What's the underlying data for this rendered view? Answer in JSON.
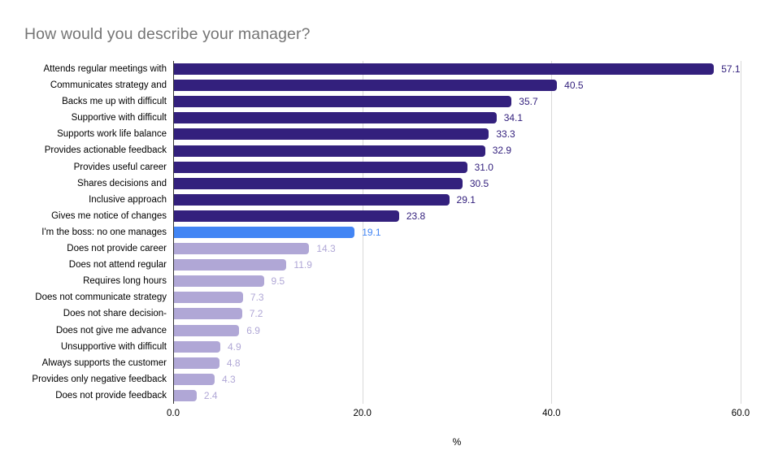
{
  "chart_data": {
    "type": "bar",
    "orientation": "horizontal",
    "title": "How would you describe your manager?",
    "xlabel": "%",
    "xlim": [
      0,
      60
    ],
    "grid": "vertical-only",
    "legend": "none",
    "x_ticks": [
      {
        "value": 0,
        "label": "0.0"
      },
      {
        "value": 20,
        "label": "20.0"
      },
      {
        "value": 40,
        "label": "40.0"
      },
      {
        "value": 60,
        "label": "60.0"
      }
    ],
    "categories": [
      "Attends regular meetings with",
      "Communicates strategy and",
      "Backs me up with difficult",
      "Supportive with difficult",
      "Supports work life balance",
      "Provides actionable feedback",
      "Provides useful career",
      "Shares decisions and",
      "Inclusive approach",
      "Gives me notice of changes",
      "I'm the boss: no one manages",
      "Does not provide career",
      "Does not attend regular",
      "Requires long hours",
      "Does not communicate strategy",
      "Does not share decision-",
      "Does not give me advance",
      "Unsupportive with difficult",
      "Always supports the customer",
      "Provides only negative feedback",
      "Does not provide feedback"
    ],
    "values": [
      57.1,
      40.5,
      35.7,
      34.1,
      33.3,
      32.9,
      31.0,
      30.5,
      29.1,
      23.8,
      19.1,
      14.3,
      11.9,
      9.5,
      7.3,
      7.2,
      6.9,
      4.9,
      4.8,
      4.3,
      2.4
    ],
    "value_labels": [
      "57.1",
      "40.5",
      "35.7",
      "34.1",
      "33.3",
      "32.9",
      "31.0",
      "30.5",
      "29.1",
      "23.8",
      "19.1",
      "14.3",
      "11.9",
      "9.5",
      "7.3",
      "7.2",
      "6.9",
      "4.9",
      "4.8",
      "4.3",
      "2.4"
    ],
    "bar_color_keys": [
      "dark",
      "dark",
      "dark",
      "dark",
      "dark",
      "dark",
      "dark",
      "dark",
      "dark",
      "dark",
      "blue",
      "light",
      "light",
      "light",
      "light",
      "light",
      "light",
      "light",
      "light",
      "light",
      "light"
    ],
    "colors": {
      "dark": "#33207d",
      "blue": "#4285f4",
      "light": "#b0a7d6",
      "title_text": "#757575",
      "axis_text": "#000000",
      "gridline": "#d9d9d9",
      "axis_line": "#333333"
    }
  }
}
